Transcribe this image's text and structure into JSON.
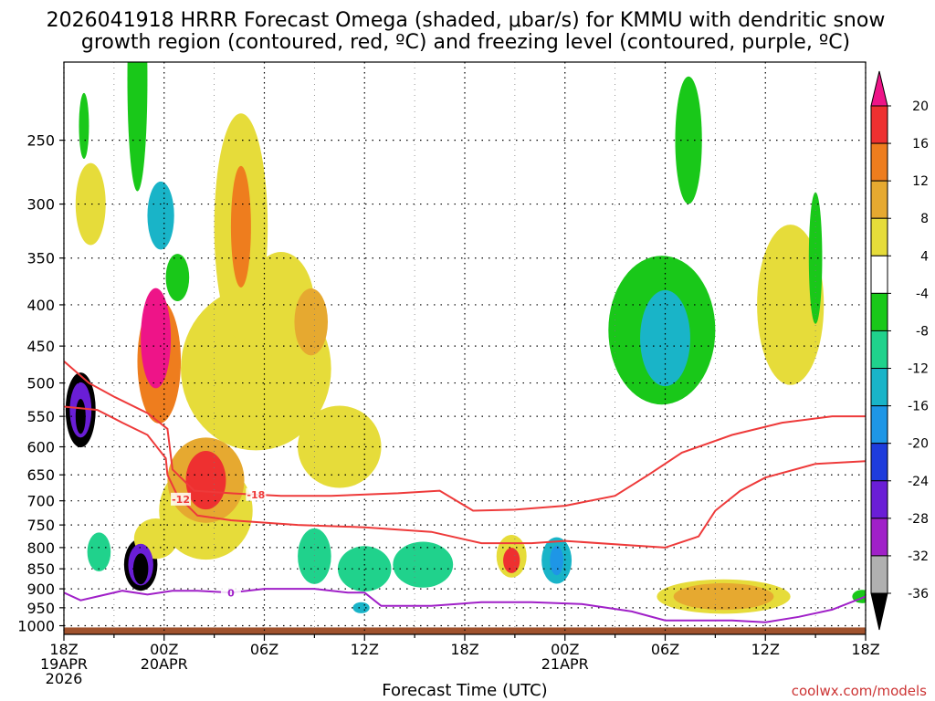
{
  "chart_data": {
    "type": "heatmap",
    "title_line1": "2026041918 HRRR Forecast Omega (shaded, μbar/s) for KMMU with dendritic snow",
    "title_line2": "growth region (contoured, red, ºC) and freezing level (contoured, purple, ºC)",
    "xlabel": "Forecast Time (UTC)",
    "ylabel": "",
    "credit": "coolwx.com/models",
    "y_axis": {
      "unit": "hPa",
      "range": [
        1025,
        200
      ],
      "ticks": [
        250,
        300,
        350,
        400,
        450,
        500,
        550,
        600,
        650,
        700,
        750,
        800,
        850,
        900,
        950,
        1000
      ]
    },
    "x_axis": {
      "unit": "forecast hours",
      "range": [
        0,
        48
      ],
      "ticks": [
        {
          "hour": 0,
          "lines": [
            "18Z",
            "19APR",
            "2026"
          ]
        },
        {
          "hour": 6,
          "lines": [
            "00Z",
            "20APR"
          ]
        },
        {
          "hour": 12,
          "lines": [
            "06Z"
          ]
        },
        {
          "hour": 18,
          "lines": [
            "12Z"
          ]
        },
        {
          "hour": 24,
          "lines": [
            "18Z"
          ]
        },
        {
          "hour": 30,
          "lines": [
            "00Z",
            "21APR"
          ]
        },
        {
          "hour": 36,
          "lines": [
            "06Z"
          ]
        },
        {
          "hour": 42,
          "lines": [
            "12Z"
          ]
        },
        {
          "hour": 48,
          "lines": [
            "18Z"
          ]
        }
      ]
    },
    "colorbar": {
      "labels": [
        "20",
        "16",
        "12",
        "8",
        "4",
        "-4",
        "-8",
        "-12",
        "-16",
        "-20",
        "-24",
        "-28",
        "-32",
        "-36"
      ],
      "bins": [
        {
          "range": [
            20,
            24
          ],
          "color": "#ee1488"
        },
        {
          "range": [
            16,
            20
          ],
          "color": "#ee3030"
        },
        {
          "range": [
            12,
            16
          ],
          "color": "#ee7d1e"
        },
        {
          "range": [
            8,
            12
          ],
          "color": "#e6a930"
        },
        {
          "range": [
            4,
            8
          ],
          "color": "#e6dc3a"
        },
        {
          "range": [
            -4,
            4
          ],
          "color": "#ffffff"
        },
        {
          "range": [
            -8,
            -4
          ],
          "color": "#19c819"
        },
        {
          "range": [
            -12,
            -8
          ],
          "color": "#20d28c"
        },
        {
          "range": [
            -16,
            -12
          ],
          "color": "#19b4c8"
        },
        {
          "range": [
            -20,
            -16
          ],
          "color": "#1e96e6"
        },
        {
          "range": [
            -24,
            -20
          ],
          "color": "#1e3cdc"
        },
        {
          "range": [
            -28,
            -24
          ],
          "color": "#6a1ed6"
        },
        {
          "range": [
            -32,
            -28
          ],
          "color": "#a020c8"
        },
        {
          "range": [
            -36,
            -32
          ],
          "color": "#b0b0b0"
        },
        {
          "range": [
            -40,
            -36
          ],
          "color": "#000000"
        }
      ]
    },
    "omega_features": [
      {
        "hour": 1.0,
        "p": 540,
        "dh": 0.9,
        "dp": 115,
        "value": -40
      },
      {
        "hour": 1.0,
        "p": 540,
        "dh": 0.65,
        "dp": 85,
        "value": -26
      },
      {
        "hour": 1.0,
        "p": 550,
        "dh": 0.3,
        "dp": 55,
        "value": -40
      },
      {
        "hour": 2.1,
        "p": 810,
        "dh": 0.7,
        "dp": 90,
        "value": -10
      },
      {
        "hour": 1.6,
        "p": 300,
        "dh": 0.9,
        "dp": 70,
        "value": 6
      },
      {
        "hour": 1.2,
        "p": 240,
        "dh": 0.3,
        "dp": 45,
        "value": -6
      },
      {
        "hour": 4.4,
        "p": 210,
        "dh": 0.6,
        "dp": 130,
        "value": -6
      },
      {
        "hour": 4.6,
        "p": 840,
        "dh": 1.0,
        "dp": 125,
        "value": -40
      },
      {
        "hour": 4.6,
        "p": 840,
        "dh": 0.75,
        "dp": 100,
        "value": -26
      },
      {
        "hour": 4.6,
        "p": 850,
        "dh": 0.45,
        "dp": 75,
        "value": -40
      },
      {
        "hour": 5.5,
        "p": 440,
        "dh": 0.9,
        "dp": 125,
        "value": 24
      },
      {
        "hour": 5.7,
        "p": 470,
        "dh": 1.3,
        "dp": 165,
        "value": 14
      },
      {
        "hour": 5.5,
        "p": 780,
        "dh": 1.3,
        "dp": 90,
        "value": 6
      },
      {
        "hour": 5.8,
        "p": 310,
        "dh": 0.8,
        "dp": 60,
        "value": -14
      },
      {
        "hour": 6.8,
        "p": 370,
        "dh": 0.7,
        "dp": 50,
        "value": -6
      },
      {
        "hour": 8.5,
        "p": 660,
        "dh": 1.2,
        "dp": 110,
        "value": 18
      },
      {
        "hour": 8.5,
        "p": 660,
        "dh": 2.3,
        "dp": 160,
        "value": 10
      },
      {
        "hour": 8.5,
        "p": 720,
        "dh": 2.8,
        "dp": 200,
        "value": 6
      },
      {
        "hour": 10.6,
        "p": 320,
        "dh": 0.6,
        "dp": 110,
        "value": 14
      },
      {
        "hour": 10.6,
        "p": 320,
        "dh": 1.6,
        "dp": 200,
        "value": 6
      },
      {
        "hour": 11.5,
        "p": 480,
        "dh": 4.5,
        "dp": 220,
        "value": 6
      },
      {
        "hour": 14.8,
        "p": 420,
        "dh": 1.0,
        "dp": 80,
        "value": 10
      },
      {
        "hour": 16.5,
        "p": 600,
        "dh": 2.5,
        "dp": 140,
        "value": 5
      },
      {
        "hour": 13.0,
        "p": 400,
        "dh": 2.0,
        "dp": 120,
        "value": 6
      },
      {
        "hour": 15.0,
        "p": 820,
        "dh": 1.0,
        "dp": 130,
        "value": -10
      },
      {
        "hour": 18.0,
        "p": 850,
        "dh": 1.6,
        "dp": 110,
        "value": -10
      },
      {
        "hour": 21.5,
        "p": 840,
        "dh": 1.8,
        "dp": 110,
        "value": -10
      },
      {
        "hour": 17.8,
        "p": 950,
        "dh": 0.5,
        "dp": 30,
        "value": -14
      },
      {
        "hour": 26.8,
        "p": 830,
        "dh": 0.5,
        "dp": 60,
        "value": 18
      },
      {
        "hour": 26.8,
        "p": 820,
        "dh": 0.9,
        "dp": 100,
        "value": 6
      },
      {
        "hour": 29.5,
        "p": 830,
        "dh": 0.9,
        "dp": 110,
        "value": -14
      },
      {
        "hour": 29.5,
        "p": 830,
        "dh": 0.4,
        "dp": 70,
        "value": -18
      },
      {
        "hour": 36.0,
        "p": 440,
        "dh": 1.5,
        "dp": 120,
        "value": -14
      },
      {
        "hour": 35.8,
        "p": 430,
        "dh": 3.2,
        "dp": 180,
        "value": -6
      },
      {
        "hour": 37.4,
        "p": 250,
        "dh": 0.8,
        "dp": 90,
        "value": -6
      },
      {
        "hour": 39.5,
        "p": 920,
        "dh": 3.0,
        "dp": 70,
        "value": 10
      },
      {
        "hour": 39.5,
        "p": 920,
        "dh": 4.0,
        "dp": 90,
        "value": 6
      },
      {
        "hour": 45.0,
        "p": 350,
        "dh": 0.4,
        "dp": 130,
        "value": -6
      },
      {
        "hour": 43.5,
        "p": 400,
        "dh": 2.0,
        "dp": 180,
        "value": 6
      },
      {
        "hour": 47.8,
        "p": 920,
        "dh": 0.6,
        "dp": 35,
        "value": -6
      }
    ],
    "contours": [
      {
        "name": "-18 dendritic top",
        "color": "#ee3a3a",
        "label": "-18",
        "label_hour": 11.5,
        "points": [
          [
            0,
            470
          ],
          [
            1.5,
            500
          ],
          [
            3,
            520
          ],
          [
            5,
            545
          ],
          [
            6.2,
            570
          ],
          [
            6.5,
            640
          ],
          [
            7.8,
            680
          ],
          [
            10,
            685
          ],
          [
            13,
            690
          ],
          [
            16,
            690
          ],
          [
            20,
            685
          ],
          [
            22.5,
            680
          ],
          [
            24.5,
            720
          ],
          [
            27,
            718
          ],
          [
            30,
            710
          ],
          [
            33,
            690
          ],
          [
            35,
            650
          ],
          [
            37,
            610
          ],
          [
            40,
            580
          ],
          [
            43,
            560
          ],
          [
            46,
            550
          ],
          [
            48,
            550
          ]
        ]
      },
      {
        "name": "-12 dendritic bottom",
        "color": "#ee3a3a",
        "label": "-12",
        "label_hour": 7.0,
        "points": [
          [
            0,
            535
          ],
          [
            2,
            540
          ],
          [
            3.5,
            560
          ],
          [
            5,
            580
          ],
          [
            6.1,
            620
          ],
          [
            6.2,
            650
          ],
          [
            6.8,
            690
          ],
          [
            8,
            730
          ],
          [
            10,
            740
          ],
          [
            14,
            750
          ],
          [
            18,
            755
          ],
          [
            22,
            765
          ],
          [
            25,
            790
          ],
          [
            28,
            790
          ],
          [
            30,
            785
          ],
          [
            34,
            795
          ],
          [
            36,
            800
          ],
          [
            38,
            775
          ],
          [
            39,
            720
          ],
          [
            40.5,
            680
          ],
          [
            42,
            655
          ],
          [
            45,
            630
          ],
          [
            48,
            625
          ]
        ]
      },
      {
        "name": "0 freezing level",
        "color": "#a020c8",
        "label": "0",
        "label_hour": 10.0,
        "points": [
          [
            0,
            910
          ],
          [
            1,
            930
          ],
          [
            2,
            920
          ],
          [
            3.5,
            905
          ],
          [
            5,
            915
          ],
          [
            6.5,
            905
          ],
          [
            8,
            905
          ],
          [
            10,
            910
          ],
          [
            12,
            900
          ],
          [
            15,
            900
          ],
          [
            17,
            910
          ],
          [
            18,
            910
          ],
          [
            19,
            945
          ],
          [
            22,
            945
          ],
          [
            25,
            935
          ],
          [
            28,
            935
          ],
          [
            31,
            940
          ],
          [
            34,
            960
          ],
          [
            36,
            985
          ],
          [
            40,
            985
          ],
          [
            42,
            990
          ],
          [
            44,
            975
          ],
          [
            46,
            955
          ],
          [
            48,
            920
          ]
        ]
      }
    ],
    "terrain": {
      "color": "#a0522d",
      "p_top": 1005
    }
  }
}
